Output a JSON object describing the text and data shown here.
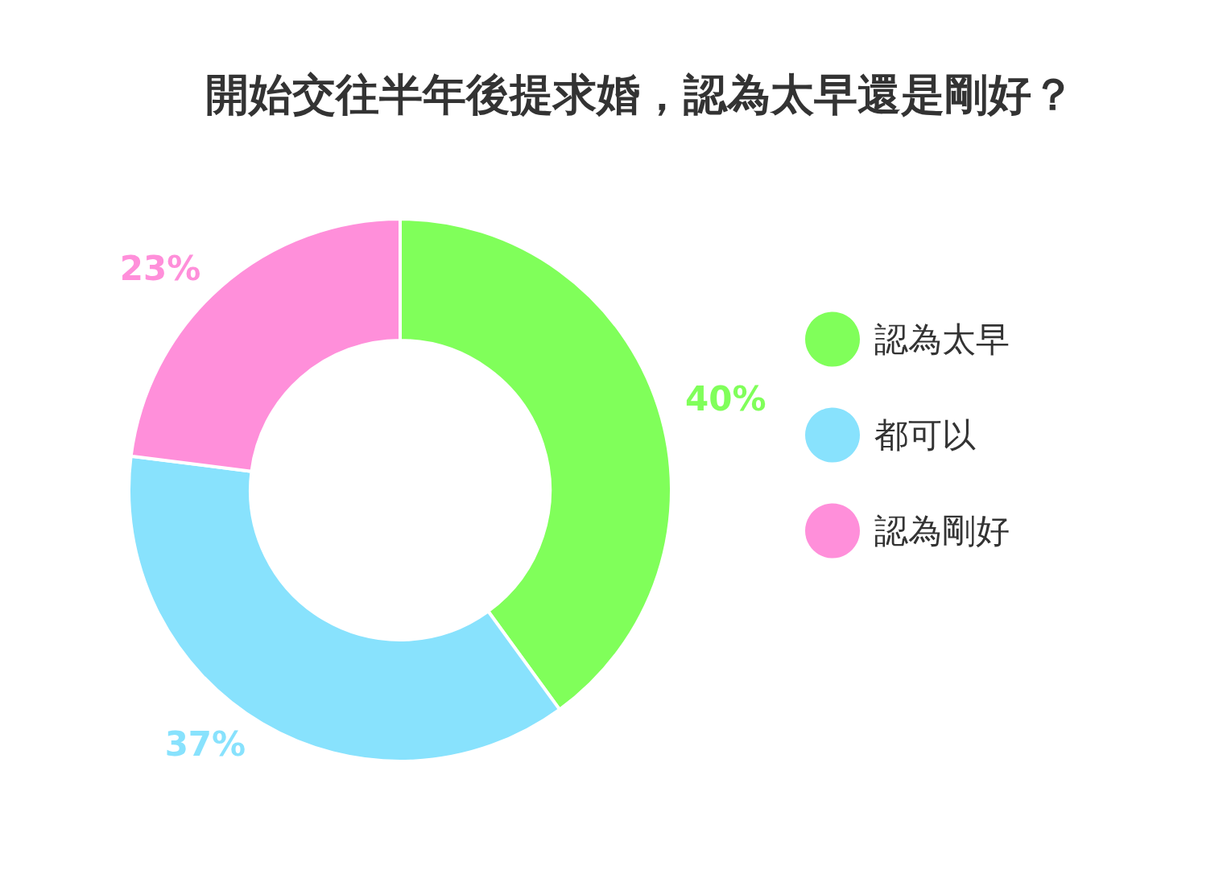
{
  "chart_data": {
    "type": "donut",
    "title": "開始交往半年後提求婚，認為太早還是剛好？",
    "categories": [
      "認為太早",
      "都可以",
      "認為剛好"
    ],
    "values": [
      40,
      37,
      23
    ],
    "colors": [
      "#80ff5a",
      "#88e2fd",
      "#ff8fda"
    ],
    "value_labels": [
      "40%",
      "37%",
      "23%"
    ],
    "legend": "right"
  }
}
